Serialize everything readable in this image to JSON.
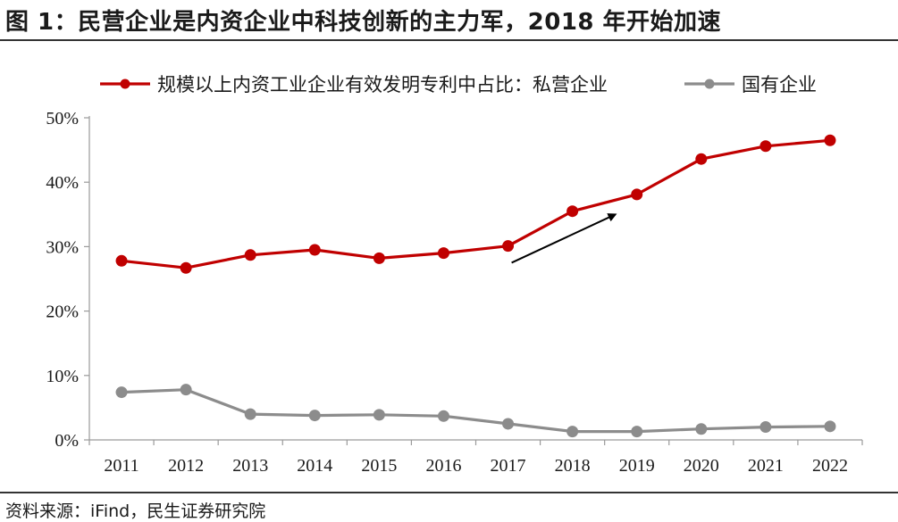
{
  "figure": {
    "title": "图 1：民营企业是内资企业中科技创新的主力军，2018 年开始加速",
    "source": "资料来源：iFind，民生证券研究院"
  },
  "chart_data": {
    "type": "line",
    "categories": [
      "2011",
      "2012",
      "2013",
      "2014",
      "2015",
      "2016",
      "2017",
      "2018",
      "2019",
      "2020",
      "2021",
      "2022"
    ],
    "series": [
      {
        "name": "规模以上内资工业企业有效发明专利中占比：私营企业",
        "color": "#C00000",
        "values": [
          27.8,
          26.7,
          28.7,
          29.5,
          28.2,
          29.0,
          30.1,
          35.5,
          38.1,
          43.6,
          45.6,
          46.5
        ]
      },
      {
        "name": "国有企业",
        "color": "#8C8C8C",
        "values": [
          7.4,
          7.8,
          4.0,
          3.8,
          3.9,
          3.7,
          2.5,
          1.3,
          1.3,
          1.7,
          2.0,
          2.1
        ]
      }
    ],
    "y_ticks": [
      "0%",
      "10%",
      "20%",
      "30%",
      "40%",
      "50%"
    ],
    "ylim": [
      0,
      50
    ],
    "legend_position": "top",
    "grid": false,
    "annotation": "arrow-2017-2018-upward"
  }
}
